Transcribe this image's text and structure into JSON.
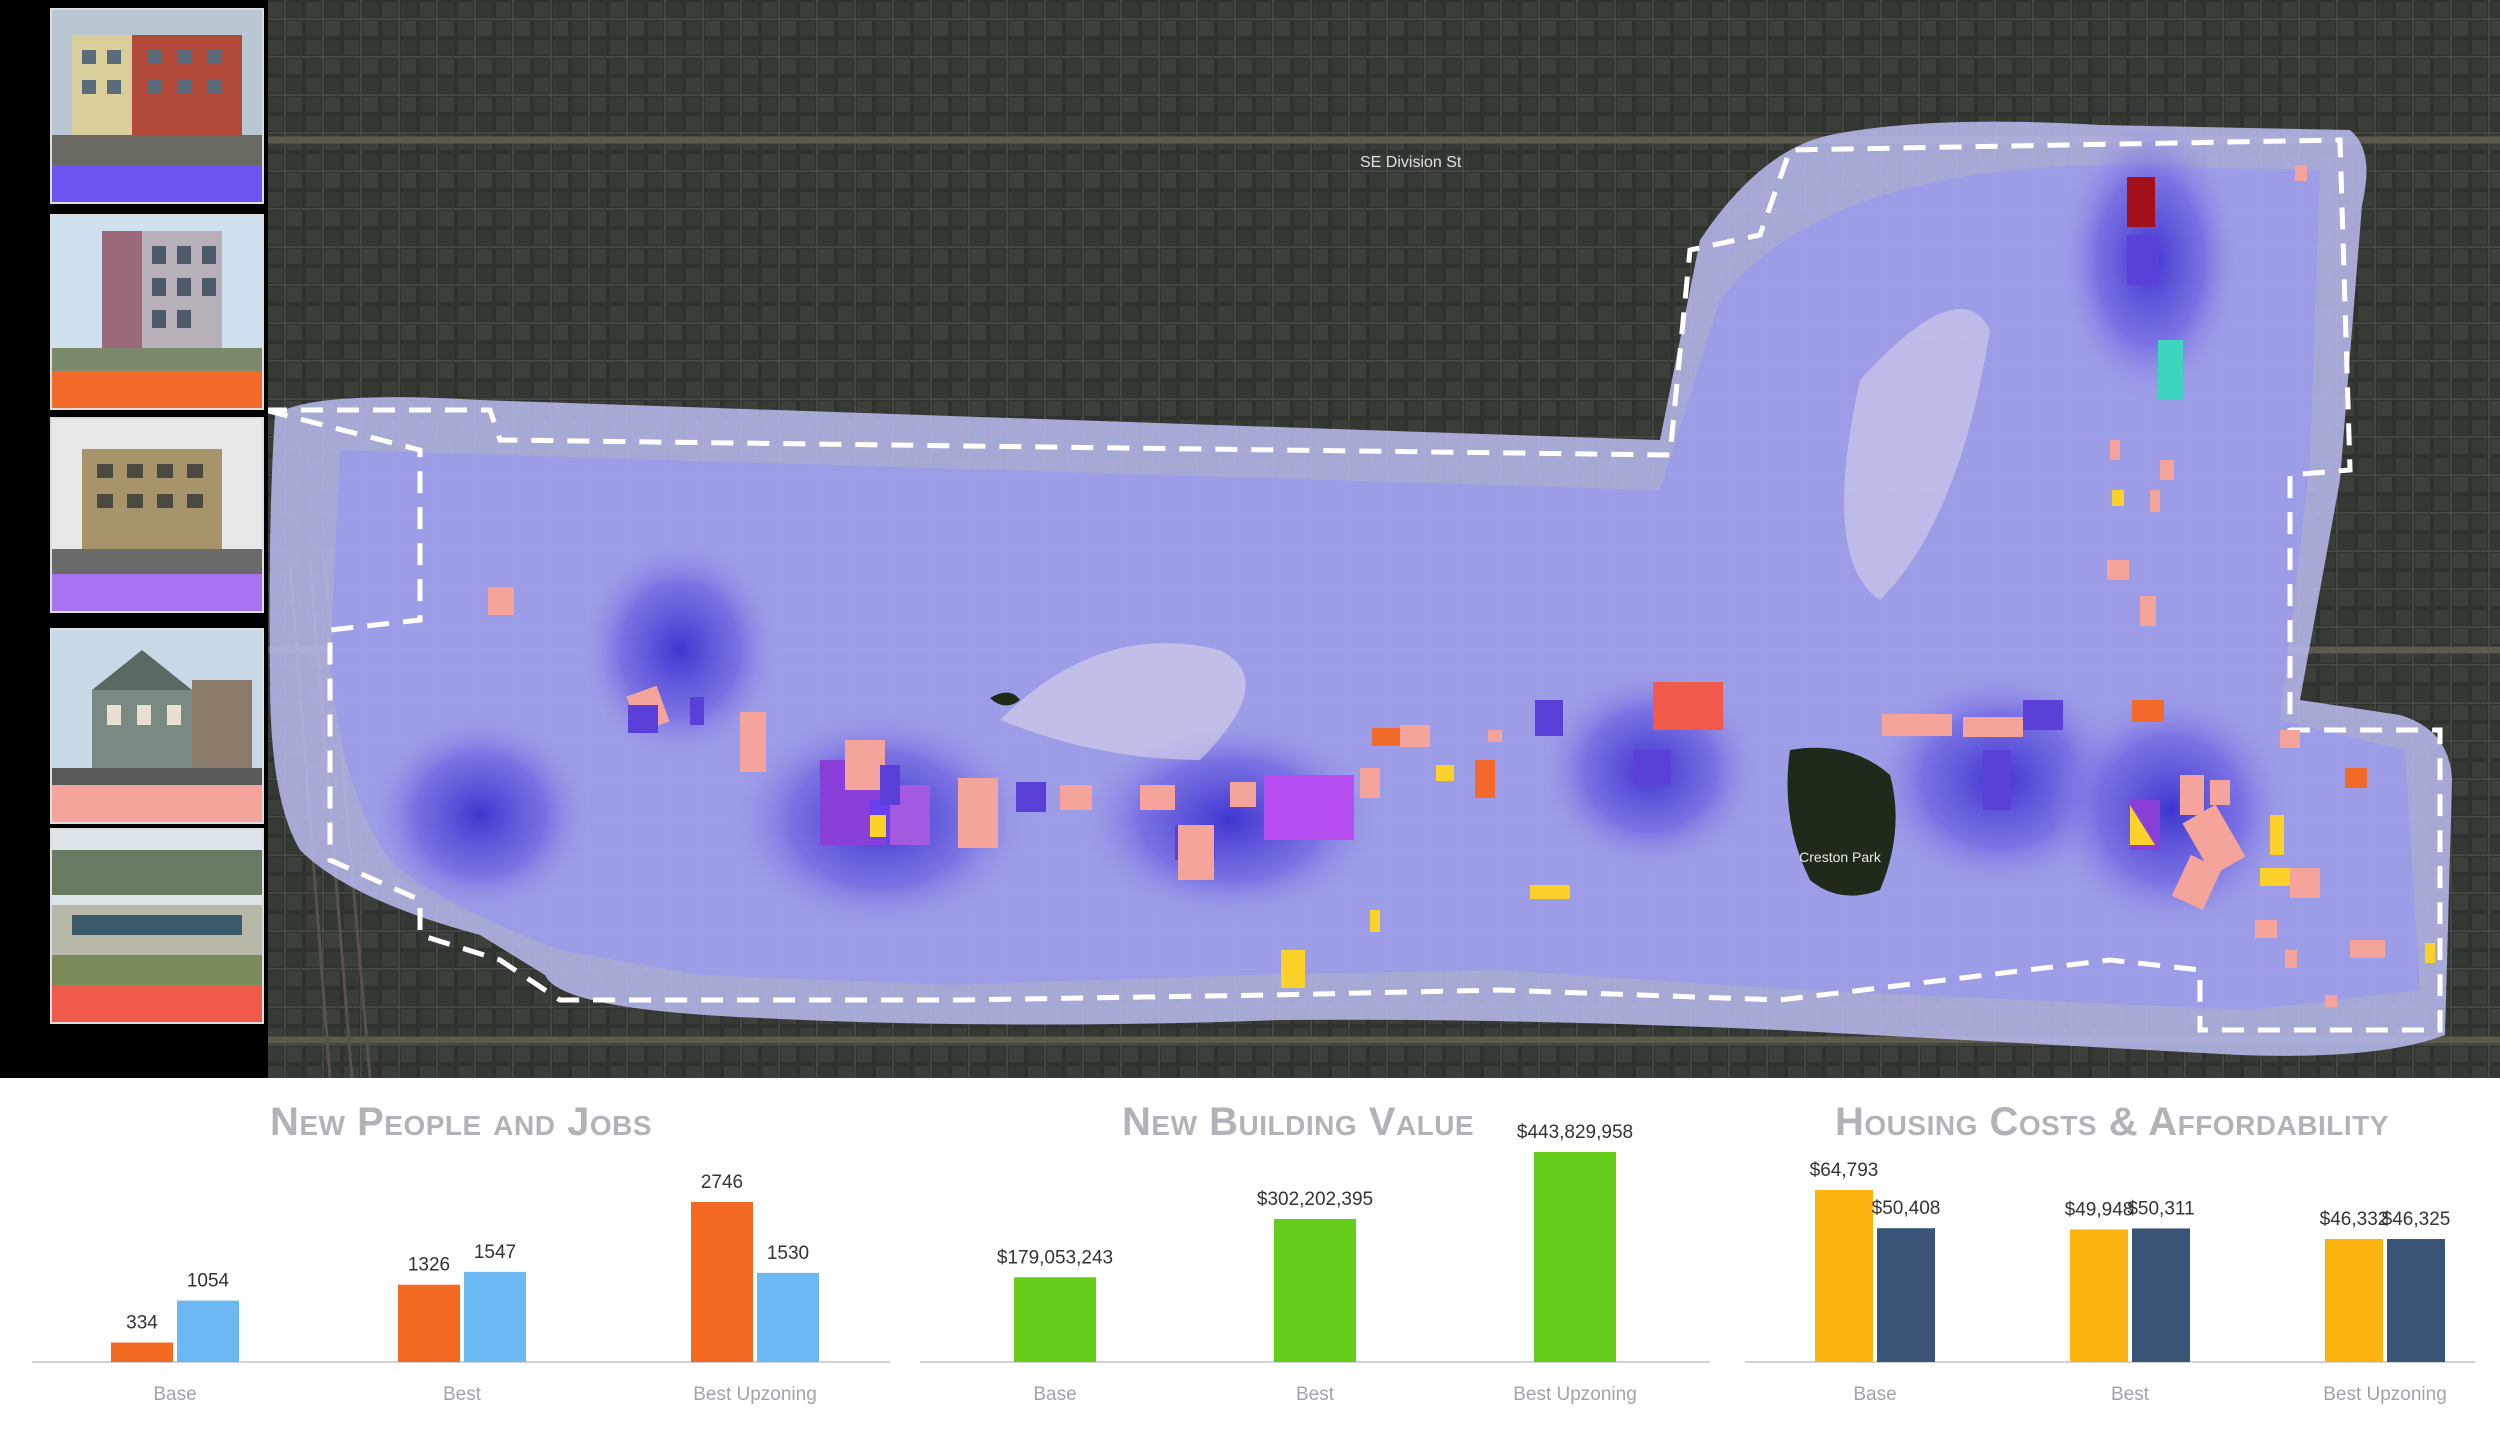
{
  "map": {
    "street_label": "SE Division St",
    "park_label": "Creston Park",
    "colors": {
      "heat_outer": "#b7b8ec",
      "heat_mid": "#8c86e6",
      "heat_core": "#4b3fd0",
      "boundary": "#ffffff",
      "imagery": "#2e322e"
    }
  },
  "sidebar": {
    "thumbnails": [
      {
        "name": "mixed-use-apartment-photo",
        "swatch_color": "#6b54f0"
      },
      {
        "name": "corner-apartment-photo",
        "swatch_color": "#f26a2a"
      },
      {
        "name": "mid-rise-corner-photo",
        "swatch_color": "#a873f0"
      },
      {
        "name": "victorian-storefront-photo",
        "swatch_color": "#f4a49a"
      },
      {
        "name": "shopping-center-photo",
        "swatch_color": "#f05a4a"
      }
    ]
  },
  "charts": {
    "people_jobs_title": "New People and Jobs",
    "building_value_title": "New Building Value",
    "housing_title": "Housing Costs & Affordability"
  },
  "chart_data": [
    {
      "type": "bar",
      "title": "New People and Jobs",
      "categories": [
        "Base",
        "Best",
        "Best Upzoning"
      ],
      "series": [
        {
          "values": [
            334,
            1326,
            2746
          ],
          "color": "#f26a21"
        },
        {
          "values": [
            1054,
            1547,
            1530
          ],
          "color": "#6bb8f2"
        }
      ],
      "data_labels": [
        [
          "334",
          "1054"
        ],
        [
          "1326",
          "1547"
        ],
        [
          "2746",
          "1530"
        ]
      ],
      "ylim": [
        0,
        3000
      ]
    },
    {
      "type": "bar",
      "title": "New Building Value",
      "categories": [
        "Base",
        "Best",
        "Best Upzoning"
      ],
      "series": [
        {
          "values": [
            179053243,
            302202395,
            443829958
          ],
          "color": "#66cc1a"
        }
      ],
      "data_labels": [
        [
          "$179,053,243"
        ],
        [
          "$302,202,395"
        ],
        [
          "$443,829,958"
        ]
      ],
      "ylim": [
        0,
        450000000
      ]
    },
    {
      "type": "bar",
      "title": "Housing Costs & Affordability",
      "categories": [
        "Base",
        "Best",
        "Best Upzoning"
      ],
      "series": [
        {
          "values": [
            64793,
            49948,
            46332
          ],
          "color": "#fbb40f"
        },
        {
          "values": [
            50408,
            50311,
            46325
          ],
          "color": "#3a5478"
        }
      ],
      "data_labels": [
        [
          "$64,793",
          "$50,408"
        ],
        [
          "$49,948",
          "$50,311"
        ],
        [
          "$46,332",
          "$46,325"
        ]
      ],
      "ylim": [
        0,
        70000
      ]
    }
  ]
}
